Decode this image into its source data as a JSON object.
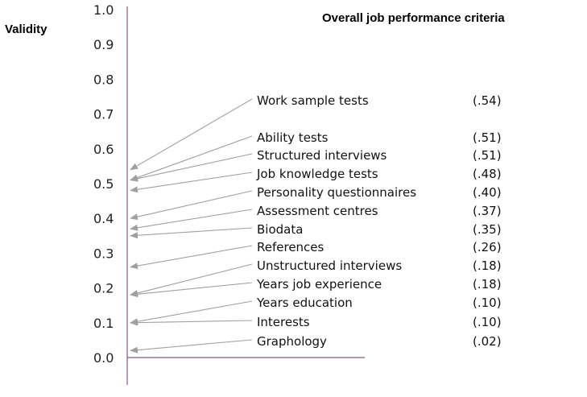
{
  "chart_data": {
    "type": "line",
    "title": "Overall job performance criteria",
    "ylabel": "Validity",
    "ylim": [
      0.0,
      1.0
    ],
    "yticks": [
      "0.0",
      "0.1",
      "0.2",
      "0.3",
      "0.4",
      "0.5",
      "0.6",
      "0.7",
      "0.8",
      "0.9",
      "1.0"
    ],
    "items": [
      {
        "label": "Work sample tests",
        "value_text": "(.54)",
        "value": 0.54
      },
      {
        "label": "Ability tests",
        "value_text": "(.51)",
        "value": 0.51
      },
      {
        "label": "Structured interviews",
        "value_text": "(.51)",
        "value": 0.51
      },
      {
        "label": "Job knowledge tests",
        "value_text": "(.48)",
        "value": 0.48
      },
      {
        "label": "Personality questionnaires",
        "value_text": "(.40)",
        "value": 0.4
      },
      {
        "label": "Assessment centres",
        "value_text": "(.37)",
        "value": 0.37
      },
      {
        "label": "Biodata",
        "value_text": "(.35)",
        "value": 0.35
      },
      {
        "label": "References",
        "value_text": "(.26)",
        "value": 0.26
      },
      {
        "label": "Unstructured interviews",
        "value_text": "(.18)",
        "value": 0.18
      },
      {
        "label": "Years job experience",
        "value_text": "(.18)",
        "value": 0.18
      },
      {
        "label": "Years education",
        "value_text": "(.10)",
        "value": 0.1
      },
      {
        "label": "Interests",
        "value_text": "(.10)",
        "value": 0.1
      },
      {
        "label": "Graphology",
        "value_text": "(.02)",
        "value": 0.02
      }
    ]
  },
  "colors": {
    "axis": "#8a5a82",
    "arrow": "#a0a0a0",
    "text": "#111111"
  }
}
